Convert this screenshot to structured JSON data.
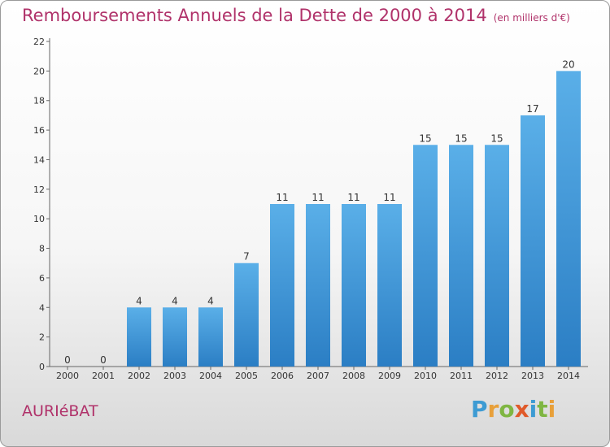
{
  "title": "Remboursements Annuels de la Dette de 2000 à 2014",
  "unit_note": "(en milliers d'€)",
  "commune": "AURIéBAT",
  "logo": {
    "p": "P",
    "r": "r",
    "o": "o",
    "x": "x",
    "i": "i",
    "t": "t",
    "i2": "i"
  },
  "colors": {
    "title": "#b0326a",
    "bar_top": "#5aafe8",
    "bar_bottom": "#2b7ec4"
  },
  "chart_data": {
    "type": "bar",
    "categories": [
      "2000",
      "2001",
      "2002",
      "2003",
      "2004",
      "2005",
      "2006",
      "2007",
      "2008",
      "2009",
      "2010",
      "2011",
      "2012",
      "2013",
      "2014"
    ],
    "values": [
      0,
      0,
      4,
      4,
      4,
      7,
      11,
      11,
      11,
      11,
      15,
      15,
      15,
      17,
      20
    ],
    "data_labels": [
      "0",
      "0",
      "4",
      "4",
      "4",
      "7",
      "11",
      "11",
      "11",
      "11",
      "15",
      "15",
      "15",
      "17",
      "20"
    ],
    "title": "Remboursements Annuels de la Dette de 2000 à 2014",
    "xlabel": "",
    "ylabel": "",
    "ylim": [
      0,
      22
    ],
    "yticks": [
      "0",
      "2",
      "4",
      "6",
      "8",
      "10",
      "12",
      "14",
      "16",
      "18",
      "20",
      "22"
    ],
    "grid": false,
    "legend": "none"
  }
}
